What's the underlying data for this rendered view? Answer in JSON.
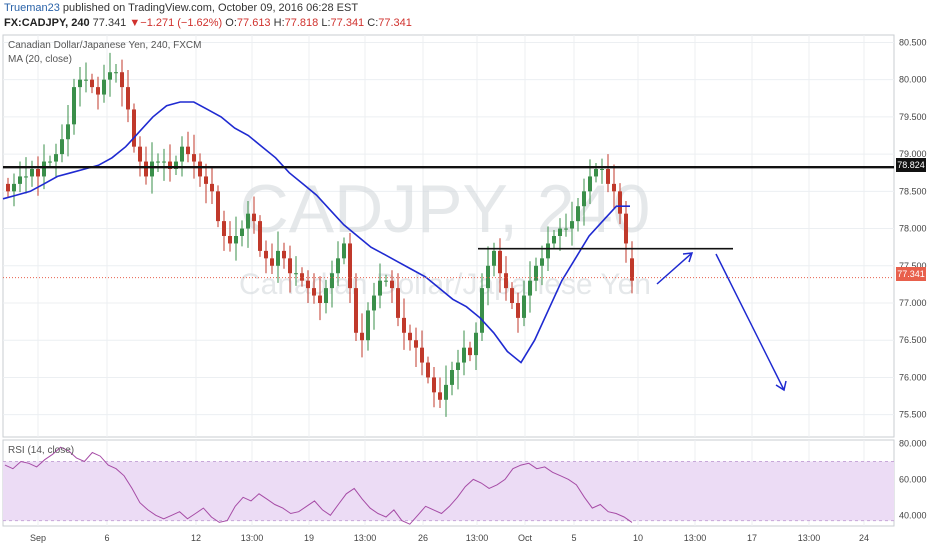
{
  "header": {
    "author": "Trueman23",
    "published_text": "published on TradingView.com, October 09, 2016 06:28 EST",
    "symbol": "FX:CADJPY, 240",
    "last": "77.341",
    "change_arrow": "▼",
    "change": "−1.271 (−1.62%)",
    "open_label": "O:",
    "open": "77.613",
    "high_label": "H:",
    "high": "77.818",
    "low_label": "L:",
    "low": "77.341",
    "close_label": "C:",
    "close": "77.341"
  },
  "main_pane": {
    "title": "Canadian Dollar/Japanese Yen, 240, FXCM",
    "indicator": "MA (20, close)",
    "watermark_symbol": "CADJPY, 240",
    "watermark_name": "Canadian Dollar/Japanese Yen"
  },
  "rsi_pane": {
    "indicator": "RSI (14, close)"
  },
  "badges": {
    "resistance": "78.824",
    "last": "77.341"
  },
  "colors": {
    "up": "#3a8f4a",
    "down": "#c0392b",
    "ma": "#1f2ad1",
    "arrow": "#1f2ad1",
    "rsi_line": "#a64ca6",
    "rsi_band": "#ecdcf5",
    "grid": "#eceff2",
    "last_price": "#e8604c"
  },
  "chart_data": [
    {
      "type": "candlestick",
      "title": "Canadian Dollar/Japanese Yen, 240, FXCM",
      "ylim": [
        75.2,
        80.6
      ],
      "y_ticks": [
        "80.500",
        "80.000",
        "79.500",
        "79.000",
        "78.500",
        "78.000",
        "77.500",
        "77.000",
        "76.500",
        "76.000",
        "75.500"
      ],
      "x_ticks": [
        "Sep",
        "6",
        "12",
        "13:00",
        "19",
        "13:00",
        "26",
        "13:00",
        "Oct",
        "5",
        "10",
        "13:00",
        "17",
        "13:00",
        "24"
      ],
      "x_range_candles": [
        0,
        180
      ],
      "candles_period_hours": 4,
      "closes": [
        78.5,
        78.6,
        78.7,
        78.7,
        78.8,
        78.7,
        78.9,
        78.9,
        79.0,
        79.2,
        79.4,
        79.9,
        80.0,
        80.0,
        79.9,
        79.8,
        80.0,
        80.1,
        80.1,
        79.9,
        79.6,
        79.1,
        78.9,
        78.7,
        78.9,
        78.9,
        78.9,
        78.8,
        78.9,
        79.1,
        79.0,
        78.9,
        78.7,
        78.6,
        78.5,
        78.1,
        77.9,
        77.8,
        77.9,
        78.0,
        78.2,
        78.1,
        77.7,
        77.6,
        77.5,
        77.7,
        77.6,
        77.4,
        77.4,
        77.3,
        77.2,
        77.1,
        77.0,
        77.2,
        77.4,
        77.6,
        77.8,
        77.2,
        76.6,
        76.5,
        76.9,
        77.1,
        77.3,
        77.3,
        77.2,
        76.8,
        76.6,
        76.5,
        76.4,
        76.2,
        76.0,
        75.8,
        75.7,
        75.9,
        76.1,
        76.2,
        76.4,
        76.3,
        76.6,
        77.2,
        77.5,
        77.7,
        77.4,
        77.2,
        77.0,
        76.8,
        77.1,
        77.3,
        77.5,
        77.6,
        77.8,
        77.9,
        78.0,
        78.0,
        78.1,
        78.3,
        78.5,
        78.7,
        78.8,
        78.8,
        78.6,
        78.5,
        78.2,
        77.8,
        77.3
      ],
      "opens": [
        78.6,
        78.5,
        78.6,
        78.7,
        78.7,
        78.8,
        78.7,
        78.9,
        78.9,
        79.0,
        79.2,
        79.4,
        79.9,
        80.0,
        80.0,
        79.9,
        79.8,
        80.0,
        80.1,
        80.1,
        79.9,
        79.6,
        79.1,
        78.9,
        78.7,
        78.9,
        78.9,
        78.9,
        78.8,
        78.9,
        79.1,
        79.0,
        78.9,
        78.7,
        78.6,
        78.5,
        78.1,
        77.9,
        77.8,
        77.9,
        78.0,
        78.2,
        78.1,
        77.7,
        77.6,
        77.5,
        77.7,
        77.6,
        77.4,
        77.4,
        77.3,
        77.2,
        77.1,
        77.0,
        77.2,
        77.4,
        77.6,
        77.8,
        77.2,
        76.6,
        76.5,
        76.9,
        77.1,
        77.3,
        77.3,
        77.2,
        76.8,
        76.6,
        76.5,
        76.4,
        76.2,
        76.0,
        75.8,
        75.7,
        75.9,
        76.1,
        76.2,
        76.4,
        76.3,
        76.6,
        77.2,
        77.5,
        77.7,
        77.4,
        77.2,
        77.0,
        76.8,
        77.1,
        77.3,
        77.5,
        77.6,
        77.8,
        77.9,
        78.0,
        78.0,
        78.1,
        78.3,
        78.5,
        78.7,
        78.8,
        78.8,
        78.6,
        78.5,
        78.2,
        77.6
      ],
      "ma_values": [
        78.4,
        78.45,
        78.5,
        78.6,
        78.7,
        78.75,
        78.8,
        78.85,
        78.95,
        79.1,
        79.3,
        79.5,
        79.65,
        79.7,
        79.7,
        79.6,
        79.5,
        79.35,
        79.25,
        79.1,
        78.95,
        78.75,
        78.6,
        78.45,
        78.25,
        78.05,
        77.9,
        77.75,
        77.65,
        77.55,
        77.45,
        77.35,
        77.2,
        77.05,
        76.95,
        76.8,
        76.6,
        76.35,
        76.2,
        76.5,
        76.9,
        77.3,
        77.6,
        77.9,
        78.1,
        78.3,
        78.3
      ],
      "horizontal_lines": [
        {
          "value": 78.824,
          "label": "78.824"
        },
        {
          "value": 77.73
        },
        {
          "value": 77.341,
          "label": "77.341"
        }
      ]
    },
    {
      "type": "line",
      "title": "RSI (14, close)",
      "ylim": [
        34,
        82
      ],
      "y_ticks": [
        "80.000",
        "60.000",
        "40.000"
      ],
      "band": [
        37,
        70
      ],
      "values": [
        68,
        66,
        70,
        69,
        67,
        71,
        74,
        78,
        76,
        72,
        70,
        75,
        73,
        68,
        66,
        62,
        55,
        47,
        43,
        40,
        38,
        40,
        42,
        38,
        41,
        44,
        39,
        36,
        37,
        45,
        50,
        48,
        52,
        49,
        46,
        44,
        41,
        42,
        45,
        48,
        43,
        40,
        46,
        52,
        55,
        49,
        44,
        41,
        39,
        43,
        37,
        35,
        40,
        45,
        43,
        41,
        45,
        50,
        56,
        60,
        58,
        55,
        57,
        60,
        66,
        68,
        69,
        66,
        67,
        64,
        62,
        60,
        57,
        50,
        44,
        46,
        42,
        41,
        39,
        36
      ]
    }
  ]
}
